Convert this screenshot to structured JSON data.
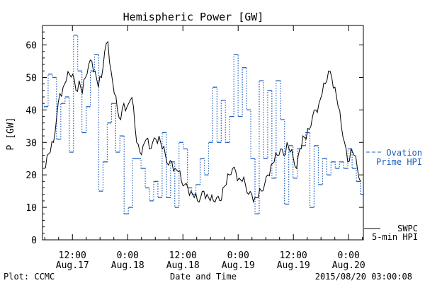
{
  "footer": {
    "left": "Plot: CCMC",
    "center": "Date and Time",
    "right": "2015/08/20 03:00:08"
  },
  "chart_data": {
    "type": "line",
    "title": "Hemispheric Power [GW]",
    "ylabel": "P [GW]",
    "xlabel": "Date and Time",
    "ylim": [
      0,
      66
    ],
    "xlim_hours": [
      -6.5,
      27.6
    ],
    "x_unit": "hours from 2015-08-17 00:00 UTC",
    "y_ticks": [
      0,
      10,
      20,
      30,
      40,
      50,
      60
    ],
    "x_ticks": [
      {
        "x": 12,
        "line1": "12:00",
        "line2": "Aug.17"
      },
      {
        "x": 24,
        "line1": "0:00",
        "line2": "Aug.18"
      },
      {
        "x": 36,
        "line1": "12:00",
        "line2": "Aug.18"
      },
      {
        "x": 48,
        "line1": "0:00",
        "line2": "Aug.19"
      },
      {
        "x": 60,
        "line1": "12:00",
        "line2": "Aug.19"
      },
      {
        "x": 72,
        "line1": "0:00",
        "line2": "Aug.20"
      }
    ],
    "grid": false,
    "legend_position": "right",
    "series": [
      {
        "name": "SWPC 5-min HPI",
        "label_line1": "SWPC",
        "label_line2": "5-min HPI",
        "color": "#000000",
        "style": "solid",
        "x": [
          0.0,
          0.5,
          1.0,
          1.5,
          2.0,
          2.5,
          3.0,
          3.5,
          4.0,
          4.5,
          5.0,
          5.5,
          6.0,
          6.5,
          7.0,
          7.5,
          8.0,
          8.5,
          9.0,
          9.5,
          10.0,
          10.5,
          11.0,
          11.5,
          12.0,
          12.5,
          13.0,
          13.5,
          14.0,
          14.5,
          15.0,
          15.5,
          16.0,
          16.5,
          17.0,
          17.5,
          18.0,
          18.5,
          19.0,
          19.5,
          20.0,
          20.5,
          21.0,
          21.5,
          22.0,
          22.5,
          23.0,
          23.5,
          24.0,
          25.0,
          26.0,
          27.0,
          28.0,
          29.0,
          30.0,
          31.0,
          32.0,
          33.0,
          34.0,
          35.0,
          36.0,
          37.0,
          38.0,
          39.0,
          40.0,
          41.0,
          42.0,
          43.0,
          44.0,
          45.0,
          46.0,
          47.0,
          48.0,
          49.0,
          50.0,
          51.0,
          52.0,
          53.0,
          54.0,
          55.0,
          56.0,
          57.0,
          58.0,
          59.0,
          60.0,
          61.0,
          62.0,
          63.0,
          64.0,
          65.0,
          66.0,
          67.0,
          68.0,
          69.0,
          70.0,
          71.0,
          72.0,
          73.0,
          74.0,
          75.0
        ],
        "y": [
          22,
          26,
          27,
          30,
          38,
          45,
          47,
          49,
          51,
          51,
          46,
          49,
          45,
          50,
          54,
          55,
          52,
          47,
          50,
          58,
          61,
          52,
          45,
          40,
          37,
          42,
          41,
          43,
          41,
          30,
          27,
          29,
          31,
          28,
          30,
          31,
          32,
          28,
          26,
          23,
          24,
          22,
          21,
          18,
          17,
          16,
          15,
          13,
          12,
          13,
          15,
          14,
          12,
          12,
          13,
          12,
          16,
          17,
          20,
          22,
          21,
          19,
          18,
          17,
          14,
          14,
          13,
          13,
          15,
          17,
          20,
          23,
          24,
          26,
          28,
          26,
          30,
          27,
          25,
          22,
          28,
          32,
          31,
          34,
          38,
          40,
          42,
          45,
          48,
          52,
          50,
          47,
          41,
          35,
          30,
          24,
          28,
          26,
          22,
          18
        ],
        "note": "x values here are relative to series start (first tick on plot ~ 6.5h before 12:00 Aug.17); mapped with offset_hours"
      },
      {
        "name": "Ovation Prime HPI",
        "label_line1": "Ovation",
        "label_line2": "Prime HPI",
        "color": "#1f5fbf",
        "style": "dotted-step",
        "x": [
          0,
          1,
          2,
          3,
          4,
          5,
          6,
          7,
          8,
          9,
          10,
          11,
          12,
          13,
          14,
          15,
          16,
          17,
          18,
          19,
          20,
          21,
          22,
          23,
          24,
          25,
          26,
          27,
          28,
          29,
          30,
          31,
          32,
          33,
          34,
          35,
          36,
          37,
          38,
          39,
          40,
          41,
          42,
          43,
          44,
          45,
          46,
          47,
          48,
          49,
          50,
          51,
          52,
          53,
          54,
          55,
          56,
          57,
          58,
          59,
          60,
          61,
          62,
          63,
          64,
          65,
          66,
          67,
          68,
          69,
          70,
          71,
          72,
          73,
          74,
          75
        ],
        "y": [
          41,
          51,
          50,
          31,
          42,
          44,
          27,
          63,
          52,
          33,
          41,
          52,
          57,
          15,
          24,
          36,
          42,
          27,
          32,
          8,
          10,
          25,
          25,
          22,
          16,
          12,
          18,
          13,
          33,
          13,
          24,
          10,
          30,
          28,
          16,
          14,
          17,
          25,
          20,
          30,
          47,
          30,
          43,
          30,
          38,
          57,
          38,
          53,
          40,
          25,
          8,
          49,
          25,
          46,
          19,
          49,
          37,
          11,
          29,
          19,
          28,
          29,
          33,
          10,
          29,
          17,
          25,
          20,
          24,
          22,
          24,
          22,
          28,
          22,
          18,
          14
        ],
        "note": "x values here are relative to series start; mapped with offset_hours"
      }
    ],
    "offset_hours": -6.5,
    "hours_per_index_black": 0.43,
    "hours_per_index_blue": 0.43
  }
}
